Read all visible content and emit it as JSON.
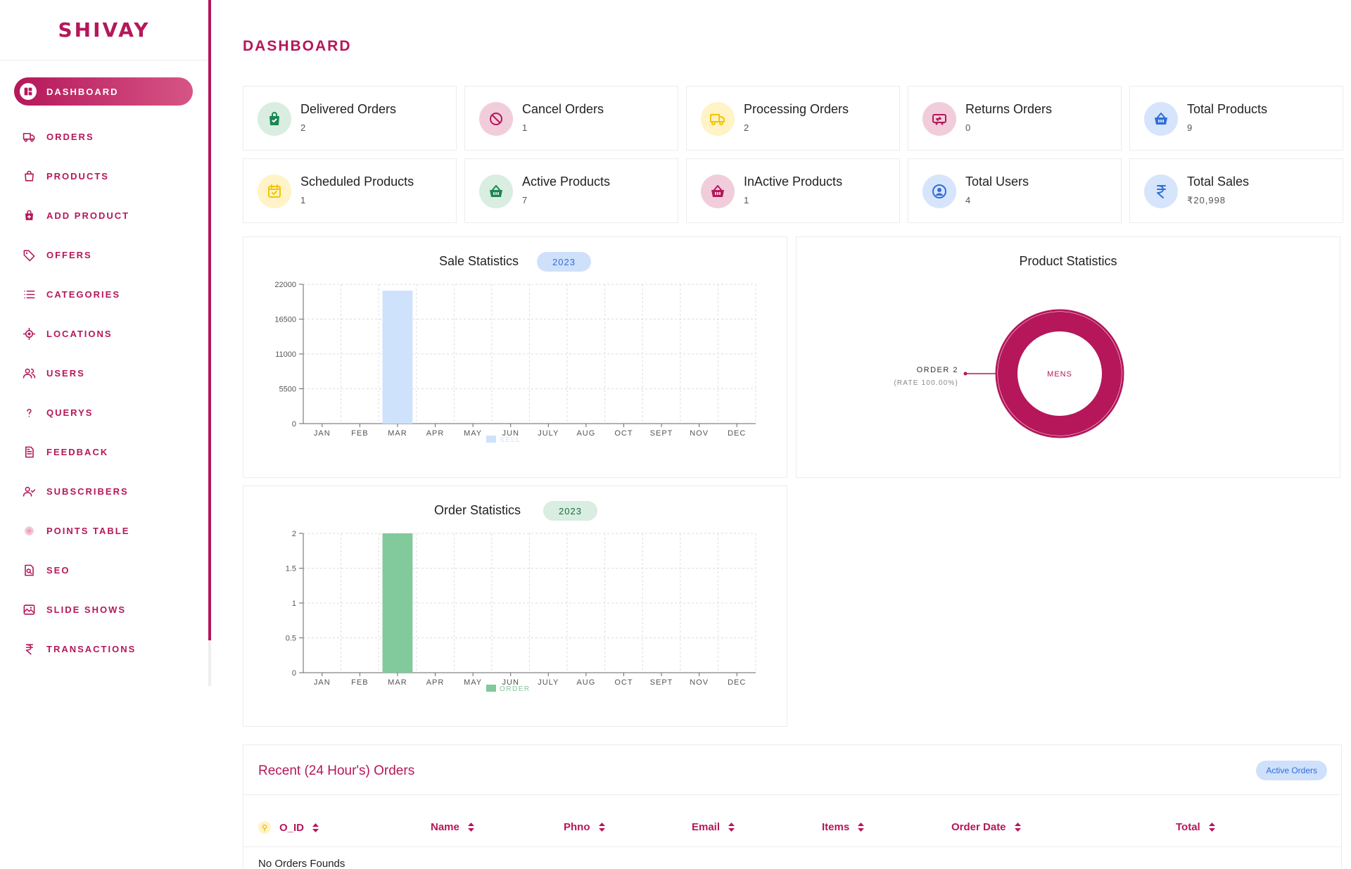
{
  "brand": {
    "name": "SHIVAY"
  },
  "sidebar": {
    "items": [
      {
        "label": "DASHBOARD",
        "icon": "dashboard-icon"
      },
      {
        "label": "ORDERS",
        "icon": "truck-icon"
      },
      {
        "label": "PRODUCTS",
        "icon": "bag-icon"
      },
      {
        "label": "ADD PRODUCT",
        "icon": "add-bag-icon"
      },
      {
        "label": "OFFERS",
        "icon": "tag-icon"
      },
      {
        "label": "CATEGORIES",
        "icon": "list-icon"
      },
      {
        "label": "LOCATIONS",
        "icon": "location-icon"
      },
      {
        "label": "USERS",
        "icon": "users-icon"
      },
      {
        "label": "QUERYS",
        "icon": "question-icon"
      },
      {
        "label": "FEEDBACK",
        "icon": "document-icon"
      },
      {
        "label": "SUBSCRIBERS",
        "icon": "user-check-icon"
      },
      {
        "label": "POINTS TABLE",
        "icon": "points-icon"
      },
      {
        "label": "SEO",
        "icon": "seo-icon"
      },
      {
        "label": "SLIDE SHOWS",
        "icon": "image-icon"
      },
      {
        "label": "TRANSACTIONS",
        "icon": "rupee-icon"
      }
    ]
  },
  "page": {
    "title": "DASHBOARD"
  },
  "stats": [
    {
      "label": "Delivered Orders",
      "value": "2",
      "icon": "shopping-bag-icon",
      "color": "#198754",
      "bg": "#d9ede1"
    },
    {
      "label": "Cancel Orders",
      "value": "1",
      "icon": "ban-icon",
      "color": "#b5175a",
      "bg": "#f1cddb"
    },
    {
      "label": "Processing Orders",
      "value": "2",
      "icon": "truck-icon",
      "color": "#f5c400",
      "bg": "#fff3c7"
    },
    {
      "label": "Returns Orders",
      "value": "0",
      "icon": "return-truck-icon",
      "color": "#b5175a",
      "bg": "#f1cddb"
    },
    {
      "label": "Total Products",
      "value": "9",
      "icon": "basket-icon",
      "color": "#2f6fd6",
      "bg": "#d6e5fb"
    },
    {
      "label": "Scheduled Products",
      "value": "1",
      "icon": "calendar-icon",
      "color": "#f5c400",
      "bg": "#fff3c7"
    },
    {
      "label": "Active Products",
      "value": "7",
      "icon": "basket-icon",
      "color": "#198754",
      "bg": "#d9ede1"
    },
    {
      "label": "InActive Products",
      "value": "1",
      "icon": "basket-icon",
      "color": "#b5175a",
      "bg": "#f1cddb"
    },
    {
      "label": "Total Users",
      "value": "4",
      "icon": "user-circle-icon",
      "color": "#2f6fd6",
      "bg": "#d6e5fb"
    },
    {
      "label": "Total Sales",
      "value": "₹20,998",
      "icon": "rupee-icon",
      "color": "#2f6fd6",
      "bg": "#d6e5fb"
    }
  ],
  "sale_stats": {
    "title": "Sale Statistics",
    "year": "2023"
  },
  "order_stats": {
    "title": "Order Statistics",
    "year": "2023"
  },
  "product_stats": {
    "title": "Product Statistics"
  },
  "chart_data": [
    {
      "type": "bar",
      "title": "Sale Statistics",
      "categories": [
        "JAN",
        "FEB",
        "MAR",
        "APR",
        "MAY",
        "JUN",
        "JULY",
        "AUG",
        "OCT",
        "SEPT",
        "NOV",
        "DEC"
      ],
      "series": [
        {
          "name": "SELL",
          "values": [
            0,
            0,
            20998,
            0,
            0,
            0,
            0,
            0,
            0,
            0,
            0,
            0
          ],
          "color": "#cfe2fb"
        }
      ],
      "yticks": [
        0,
        5500,
        11000,
        16500,
        22000
      ],
      "ylim": [
        0,
        22000
      ],
      "legend": "bottom",
      "grid": true
    },
    {
      "type": "bar",
      "title": "Order Statistics",
      "categories": [
        "JAN",
        "FEB",
        "MAR",
        "APR",
        "MAY",
        "JUN",
        "JULY",
        "AUG",
        "OCT",
        "SEPT",
        "NOV",
        "DEC"
      ],
      "series": [
        {
          "name": "ORDER",
          "values": [
            0,
            0,
            2,
            0,
            0,
            0,
            0,
            0,
            0,
            0,
            0,
            0
          ],
          "color": "#82c99b"
        }
      ],
      "yticks": [
        0,
        0.5,
        1,
        1.5,
        2
      ],
      "ylim": [
        0,
        2
      ],
      "legend": "bottom",
      "grid": true
    },
    {
      "type": "pie",
      "title": "Product Statistics",
      "slices": [
        {
          "label": "MENS",
          "value": 2,
          "rate": "100.00%",
          "color": "#b5175a"
        }
      ],
      "callout_main": "ORDER 2",
      "callout_sub": "(RATE 100.00%)"
    }
  ],
  "recent_orders": {
    "title": "Recent (24 Hour's) Orders",
    "button_label": "Active Orders",
    "columns": [
      "O_ID",
      "Name",
      "Phno",
      "Email",
      "Items",
      "Order Date",
      "Total"
    ],
    "empty_text": "No Orders Founds"
  }
}
